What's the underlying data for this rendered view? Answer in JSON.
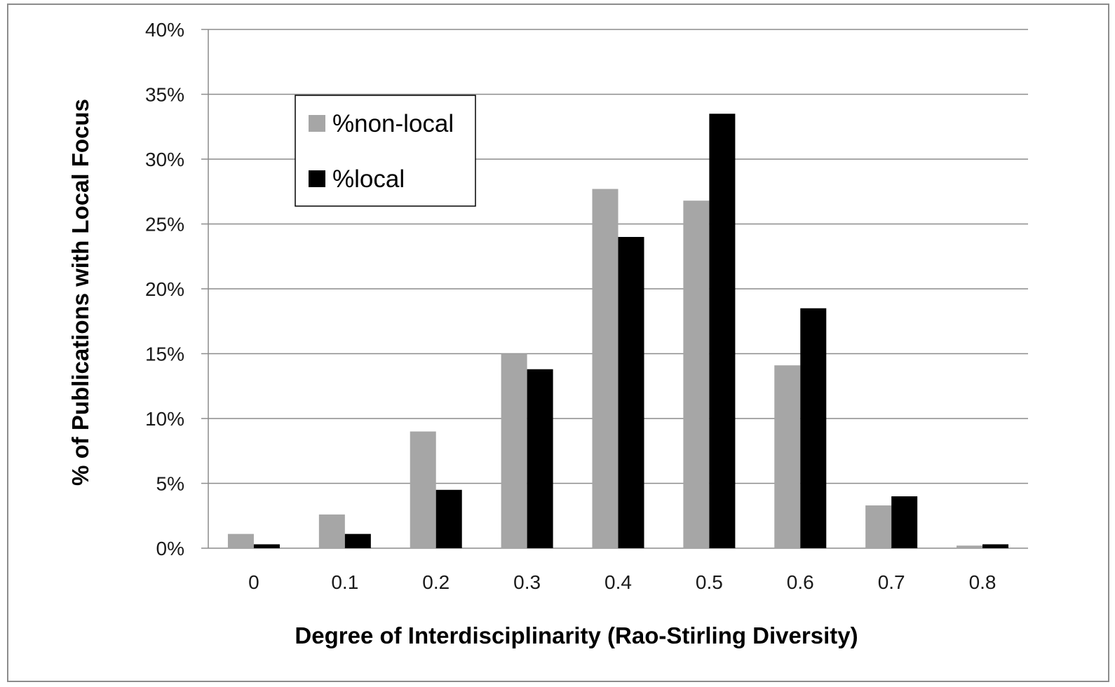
{
  "chart_data": {
    "type": "bar",
    "categories": [
      "0",
      "0.1",
      "0.2",
      "0.3",
      "0.4",
      "0.5",
      "0.6",
      "0.7",
      "0.8"
    ],
    "series": [
      {
        "name": "%non-local",
        "color": "#a6a6a6",
        "values": [
          1.1,
          2.6,
          9.0,
          15.0,
          27.7,
          26.8,
          14.1,
          3.3,
          0.2
        ]
      },
      {
        "name": "%local",
        "color": "#000000",
        "values": [
          0.3,
          1.1,
          4.5,
          13.8,
          24.0,
          33.5,
          18.5,
          4.0,
          0.3
        ]
      }
    ],
    "ylim": [
      0,
      40
    ],
    "yticks": [
      "0%",
      "5%",
      "10%",
      "15%",
      "20%",
      "25%",
      "30%",
      "35%",
      "40%"
    ],
    "xlabel": "Degree of  Interdisciplinarity (Rao-Stirling Diversity)",
    "ylabel": "% of Publications with Local Focus",
    "grid": true,
    "legend_position": "top-left"
  }
}
